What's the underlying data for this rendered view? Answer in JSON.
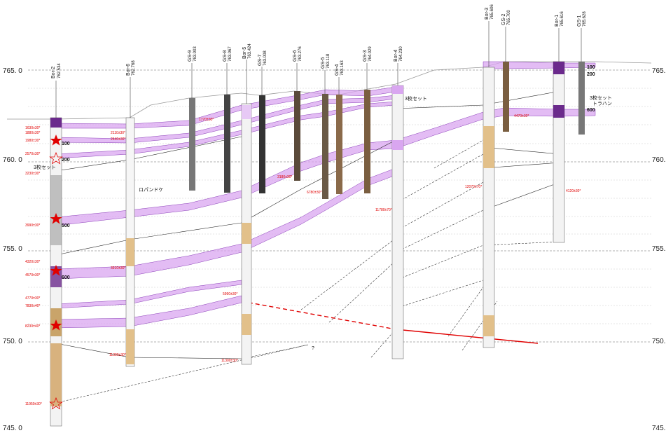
{
  "elevations": [
    "765. 0",
    "760. 0",
    "755. 0",
    "750. 0",
    "745. 0"
  ],
  "elevations_right": [
    "765.",
    "760.",
    "755.",
    "750.",
    "745."
  ],
  "boreholes": [
    {
      "name": "Bor-2",
      "elev": "762.534"
    },
    {
      "name": "Bor-6",
      "elev": "762.768"
    },
    {
      "name": "GS-9",
      "elev": "763.003"
    },
    {
      "name": "GS-8",
      "elev": "763.067"
    },
    {
      "name": "Bor-5",
      "elev": "763.424"
    },
    {
      "name": "GS-7",
      "elev": "763.008"
    },
    {
      "name": "GS-6",
      "elev": "763.276"
    },
    {
      "name": "GS-5",
      "elev": "763.118"
    },
    {
      "name": "GS-4",
      "elev": "763.163"
    },
    {
      "name": "GS-3",
      "elev": "764.029"
    },
    {
      "name": "Bor-4",
      "elev": "764.230"
    },
    {
      "name": "Bor-3",
      "elev": "765.606"
    },
    {
      "name": "GS-2",
      "elev": "765.700"
    },
    {
      "name": "Bor-1",
      "elev": "765.616"
    },
    {
      "name": "GS-1",
      "elev": "765.628"
    }
  ],
  "bor2_marks": [
    "100",
    "200",
    "500",
    "600"
  ],
  "gs1_marks": [
    "100",
    "200",
    "600"
  ],
  "notes": {
    "set3_left": "3枚セット",
    "set3_mid": "3枚セット",
    "set3_right": "3枚セット",
    "trahan": "トラハン",
    "rupan": "ロパンドケ",
    "question": "?"
  },
  "red_labels": {
    "b2_1": "1630±30*",
    "b2_2": "1880±30*",
    "b2_3": "1980±30*",
    "b2_4": "2570±30*",
    "b2_5": "3230±30*",
    "b2_6": "3990±30*",
    "b2_7": "4320±30*",
    "b2_8": "4570±30*",
    "b2_9": "4770±30*",
    "b2_10": "7830±40*",
    "b2_11": "8230±40*",
    "b2_12": "11950±30*",
    "b6_1": "2110±30*",
    "b6_2": "2440±30*",
    "b6_3": "3910±30*",
    "b6_4": "11300±30*",
    "gs9": "1770±30*",
    "b5_1": "5990±30*",
    "b5_2": "11300±30*",
    "gs6": "3180±30*",
    "gs5": "6780±30*",
    "b4": "11780±70*",
    "b3": "12070±70*",
    "b1": "4120±30*",
    "gs2": "4470±30*"
  }
}
